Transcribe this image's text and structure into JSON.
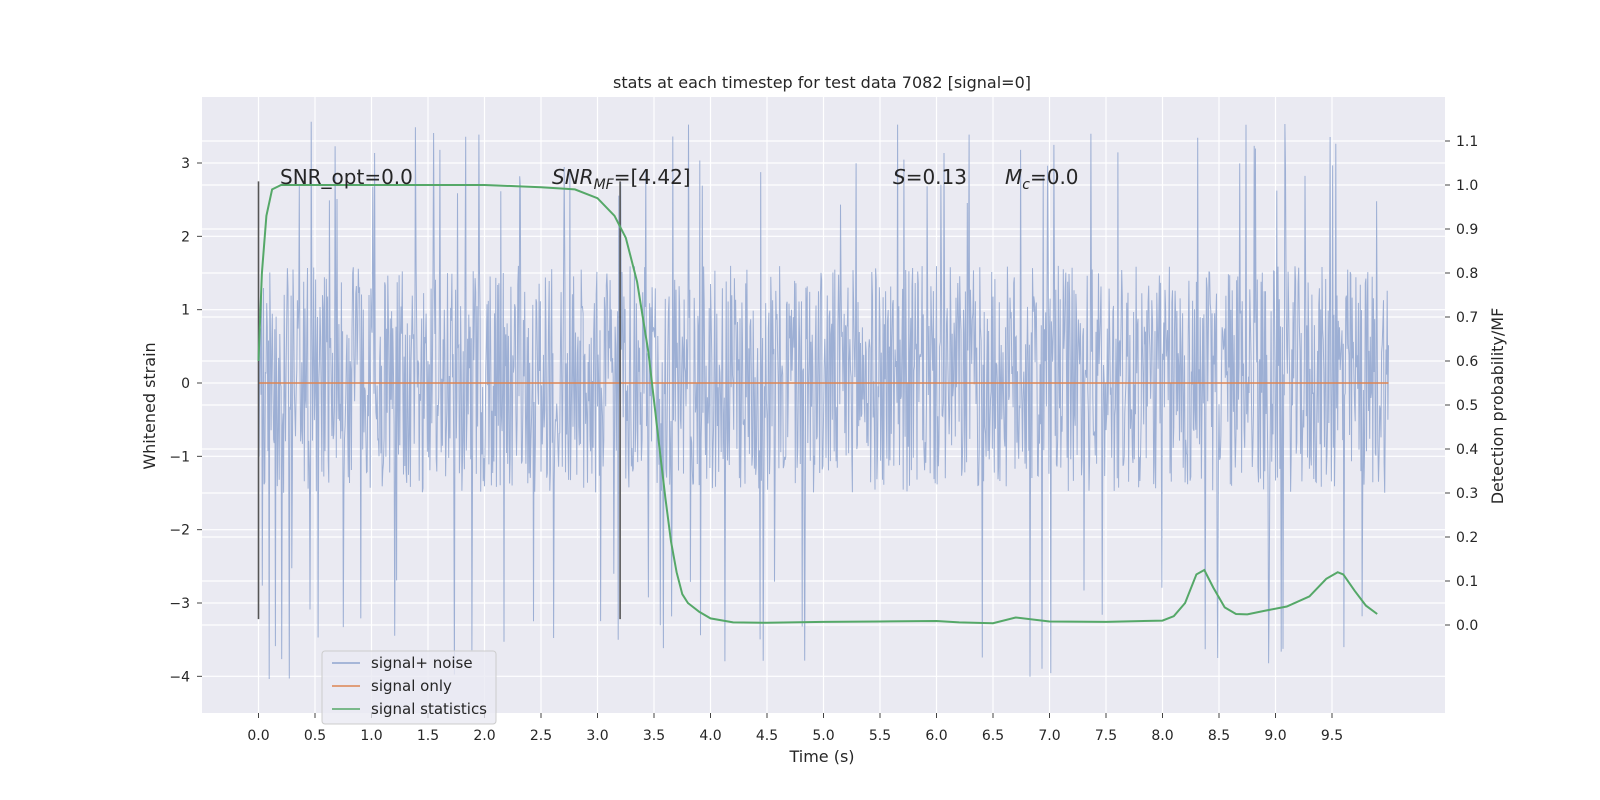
{
  "chart_data": {
    "type": "line",
    "title": "stats at each timestep for test data 7082 [signal=0]",
    "xlabel": "Time (s)",
    "ylabel_left": "Whitened strain",
    "ylabel_right": "Detection probability/MF",
    "xlim": [
      -0.5,
      10.5
    ],
    "ylim_left": [
      -4.5,
      3.9
    ],
    "ylim_right": [
      -0.2,
      1.2
    ],
    "x_ticks": [
      "0.0",
      "0.5",
      "1.0",
      "1.5",
      "2.0",
      "2.5",
      "3.0",
      "3.5",
      "4.0",
      "4.5",
      "5.0",
      "5.5",
      "6.0",
      "6.5",
      "7.0",
      "7.5",
      "8.0",
      "8.5",
      "9.0",
      "9.5"
    ],
    "y_ticks_left": [
      "3",
      "2",
      "1",
      "0",
      "−1",
      "−2",
      "−3",
      "−4"
    ],
    "y_ticks_right": [
      "1.1",
      "1.0",
      "0.9",
      "0.8",
      "0.7",
      "0.6",
      "0.5",
      "0.4",
      "0.3",
      "0.2",
      "0.1",
      "0.0"
    ],
    "grid": true,
    "legend_position": "lower-left",
    "annotations": {
      "snr_opt": "SNR_opt=0.0",
      "snr_mf_prefix": "SNR",
      "snr_mf_sub": "MF",
      "snr_mf_value": "=[4.42]",
      "s_prefix": "S",
      "s_value": "=0.13",
      "mc_prefix": "M",
      "mc_sub": "c",
      "mc_value": "=0.0"
    },
    "vertical_lines_x": [
      0.0,
      3.2
    ],
    "series": [
      {
        "name": "signal+ noise",
        "axis": "left",
        "color": "#8fa5cf",
        "x_range": [
          0.0,
          10.0
        ],
        "note": "dense noise trace, approx. between -4.1 and 3.6",
        "envelope": {
          "core_low": -1.5,
          "core_high": 1.6,
          "peak_low": -4.1,
          "peak_high": 3.6
        }
      },
      {
        "name": "signal only",
        "axis": "left",
        "color": "#dd8452",
        "x": [
          0.0,
          10.0
        ],
        "y": [
          0.0,
          0.0
        ]
      },
      {
        "name": "signal statistics",
        "axis": "right",
        "color": "#55a868",
        "x": [
          0.0,
          0.03,
          0.07,
          0.12,
          0.2,
          0.5,
          1.0,
          1.5,
          2.0,
          2.5,
          2.8,
          3.0,
          3.15,
          3.25,
          3.35,
          3.45,
          3.55,
          3.6,
          3.65,
          3.7,
          3.75,
          3.8,
          3.9,
          4.0,
          4.2,
          4.5,
          5.0,
          5.5,
          6.0,
          6.2,
          6.5,
          6.7,
          7.0,
          7.5,
          8.0,
          8.1,
          8.2,
          8.3,
          8.37,
          8.45,
          8.55,
          8.65,
          8.75,
          8.9,
          9.1,
          9.3,
          9.45,
          9.55,
          9.6,
          9.7,
          9.8,
          9.9
        ],
        "y": [
          0.6,
          0.8,
          0.93,
          0.99,
          1.0,
          1.0,
          1.0,
          1.0,
          1.0,
          0.995,
          0.99,
          0.97,
          0.93,
          0.88,
          0.78,
          0.62,
          0.4,
          0.29,
          0.19,
          0.12,
          0.07,
          0.05,
          0.03,
          0.015,
          0.006,
          0.005,
          0.007,
          0.008,
          0.009,
          0.006,
          0.004,
          0.017,
          0.008,
          0.007,
          0.01,
          0.02,
          0.05,
          0.115,
          0.125,
          0.085,
          0.04,
          0.025,
          0.024,
          0.032,
          0.042,
          0.065,
          0.105,
          0.12,
          0.115,
          0.078,
          0.044,
          0.025
        ]
      }
    ]
  }
}
